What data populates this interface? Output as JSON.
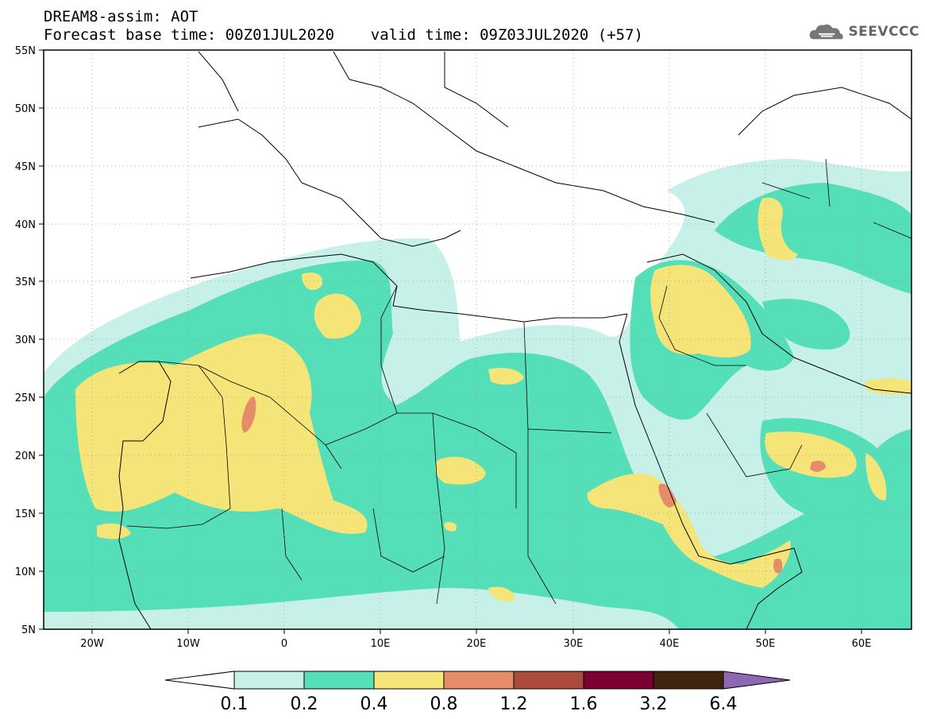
{
  "header": {
    "line1": "DREAM8-assim: AOT",
    "line2": "Forecast base time: 00Z01JUL2020    valid time: 09Z03JUL2020 (+57)"
  },
  "logo": {
    "text": "SEEVCCC",
    "icon": "cloud-icon"
  },
  "map": {
    "lon_range": [
      -25,
      65
    ],
    "lat_range": [
      5,
      55
    ],
    "lat_labels": [
      "5N",
      "10N",
      "15N",
      "20N",
      "25N",
      "30N",
      "35N",
      "40N",
      "45N",
      "50N",
      "55N"
    ],
    "lon_labels": [
      "20W",
      "10W",
      "0",
      "10E",
      "20E",
      "30E",
      "40E",
      "50E",
      "60E"
    ],
    "grid": "dotted"
  },
  "colorbar": {
    "labels": [
      "0.1",
      "0.2",
      "0.4",
      "0.8",
      "1.2",
      "1.6",
      "3.2",
      "6.4"
    ],
    "colors": [
      "#ffffff",
      "#c6f0e8",
      "#55dfb8",
      "#f5e578",
      "#e58c68",
      "#aa4b3c",
      "#7d0032",
      "#3f2410",
      "#8f68b4"
    ]
  },
  "colors": {
    "band_0_1": "#c6f0e8",
    "band_0_2": "#55dfb8",
    "band_0_4": "#f5e578",
    "band_0_8": "#e58c68"
  }
}
